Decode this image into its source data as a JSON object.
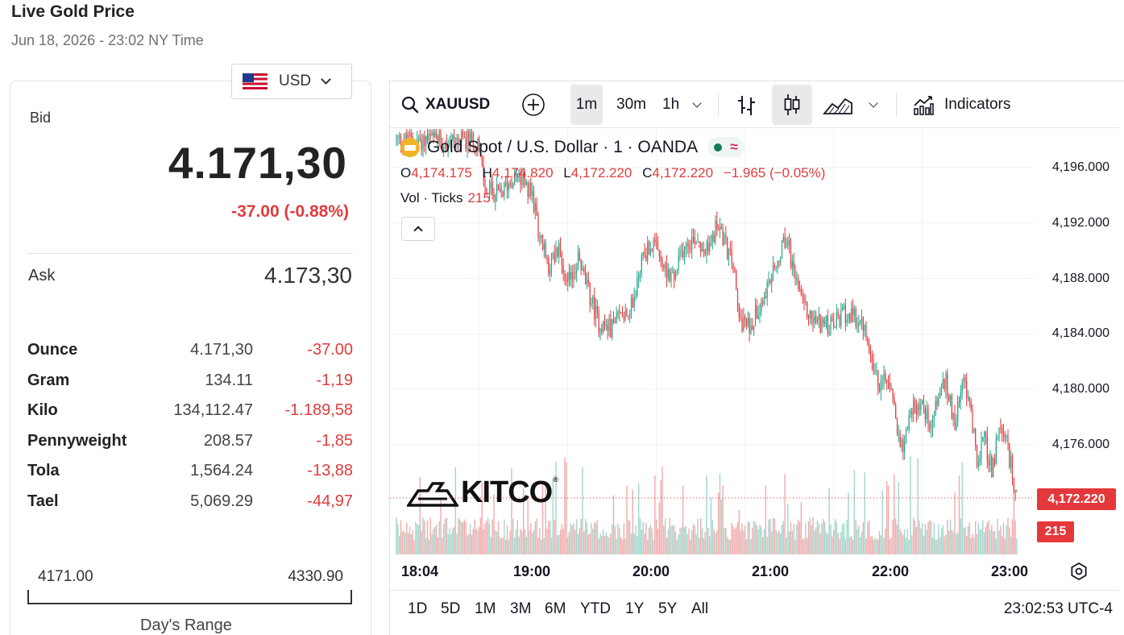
{
  "page": {
    "title": "Live Gold Price",
    "subtitle": "Jun 18, 2026 - 23:02 NY Time"
  },
  "currency": {
    "selected": "USD",
    "flag_icon": "us-flag-icon"
  },
  "quote": {
    "bid_label": "Bid",
    "bid_value": "4.171,30",
    "bid_change": "-37.00 (-0.88%)",
    "ask_label": "Ask",
    "ask_value": "4.173,30",
    "down_color": "#e03c3c"
  },
  "weights": [
    {
      "unit": "Ounce",
      "price": "4.171,30",
      "change": "-37.00"
    },
    {
      "unit": "Gram",
      "price": "134.11",
      "change": "-1,19"
    },
    {
      "unit": "Kilo",
      "price": "134,112.47",
      "change": "-1.189,58"
    },
    {
      "unit": "Pennyweight",
      "price": "208.57",
      "change": "-1,85"
    },
    {
      "unit": "Tola",
      "price": "1,564.24",
      "change": "-13,88"
    },
    {
      "unit": "Tael",
      "price": "5,069.29",
      "change": "-44,97"
    }
  ],
  "day_range": {
    "low": "4171.00",
    "high": "4330.90",
    "caption": "Day's Range"
  },
  "toolbar": {
    "symbol": "XAUUSD",
    "intervals": [
      "1m",
      "30m",
      "1h"
    ],
    "active_interval": "1m",
    "indicators_label": "Indicators"
  },
  "legend": {
    "title": "Gold Spot / U.S. Dollar · 1 · OANDA",
    "status_wave": "≈",
    "o_label": "O",
    "o_value": "4,174.175",
    "h_label": "H",
    "h_value": "4,174.820",
    "l_label": "L",
    "l_value": "4,172.220",
    "c_label": "C",
    "c_value": "4,172.220",
    "change": "−1.965 (−0.05%)",
    "vol_label": "Vol · Ticks",
    "vol_value": "215"
  },
  "watermark": {
    "text": "KITCO",
    "reg": "®"
  },
  "bottom_bar": {
    "ranges": [
      "1D",
      "5D",
      "1M",
      "3M",
      "6M",
      "YTD",
      "1Y",
      "5Y",
      "All"
    ],
    "clock": "23:02:53 UTC-4"
  },
  "chart_data": {
    "type": "candlestick",
    "symbol": "XAUUSD",
    "interval": "1m",
    "y_ticks": [
      "4,196.000",
      "4,192.000",
      "4,188.000",
      "4,184.000",
      "4,180.000",
      "4,176.000"
    ],
    "x_ticks": [
      "18:04",
      "19:00",
      "20:00",
      "21:00",
      "22:00",
      "23:00"
    ],
    "ylim": [
      4171.0,
      4198.0
    ],
    "last_price": 4172.22,
    "last_price_label": "4,172.220",
    "last_volume": 215,
    "last_volume_label": "215",
    "up_color": "#22a38a",
    "down_color": "#e5383b",
    "path_close": [
      [
        0,
        4198.0
      ],
      [
        55,
        4198.0
      ],
      [
        56,
        4197.0
      ],
      [
        60,
        4194.5
      ],
      [
        70,
        4194.0
      ],
      [
        80,
        4195.5
      ],
      [
        92,
        4194.0
      ],
      [
        97,
        4191.0
      ],
      [
        103,
        4189.0
      ],
      [
        110,
        4190.0
      ],
      [
        117,
        4187.5
      ],
      [
        123,
        4189.5
      ],
      [
        130,
        4187.0
      ],
      [
        137,
        4184.8
      ],
      [
        145,
        4184.4
      ],
      [
        153,
        4185.6
      ],
      [
        160,
        4186.0
      ],
      [
        166,
        4189.5
      ],
      [
        173,
        4190.5
      ],
      [
        180,
        4189.0
      ],
      [
        188,
        4188.0
      ],
      [
        195,
        4190.5
      ],
      [
        203,
        4191.0
      ],
      [
        210,
        4190.0
      ],
      [
        218,
        4192.0
      ],
      [
        224,
        4190.0
      ],
      [
        228,
        4189.0
      ],
      [
        232,
        4185.0
      ],
      [
        239,
        4184.5
      ],
      [
        245,
        4186.0
      ],
      [
        252,
        4187.5
      ],
      [
        258,
        4189.0
      ],
      [
        264,
        4191.0
      ],
      [
        268,
        4189.0
      ],
      [
        275,
        4186.0
      ],
      [
        282,
        4185.0
      ],
      [
        288,
        4184.8
      ],
      [
        295,
        4184.5
      ],
      [
        303,
        4185.5
      ],
      [
        312,
        4185.0
      ],
      [
        318,
        4184.2
      ],
      [
        322,
        4182.0
      ],
      [
        327,
        4180.0
      ],
      [
        333,
        4181.0
      ],
      [
        339,
        4177.0
      ],
      [
        343,
        4176.0
      ],
      [
        348,
        4178.5
      ],
      [
        355,
        4179.0
      ],
      [
        362,
        4177.5
      ],
      [
        368,
        4180.0
      ],
      [
        372,
        4180.5
      ],
      [
        378,
        4177.5
      ],
      [
        383,
        4181.0
      ],
      [
        388,
        4179.0
      ],
      [
        393,
        4175.0
      ],
      [
        398,
        4176.5
      ],
      [
        403,
        4174.0
      ],
      [
        408,
        4177.0
      ],
      [
        413,
        4176.0
      ],
      [
        417,
        4174.0
      ],
      [
        420,
        4172.2
      ]
    ],
    "time_span_minutes": 420
  }
}
